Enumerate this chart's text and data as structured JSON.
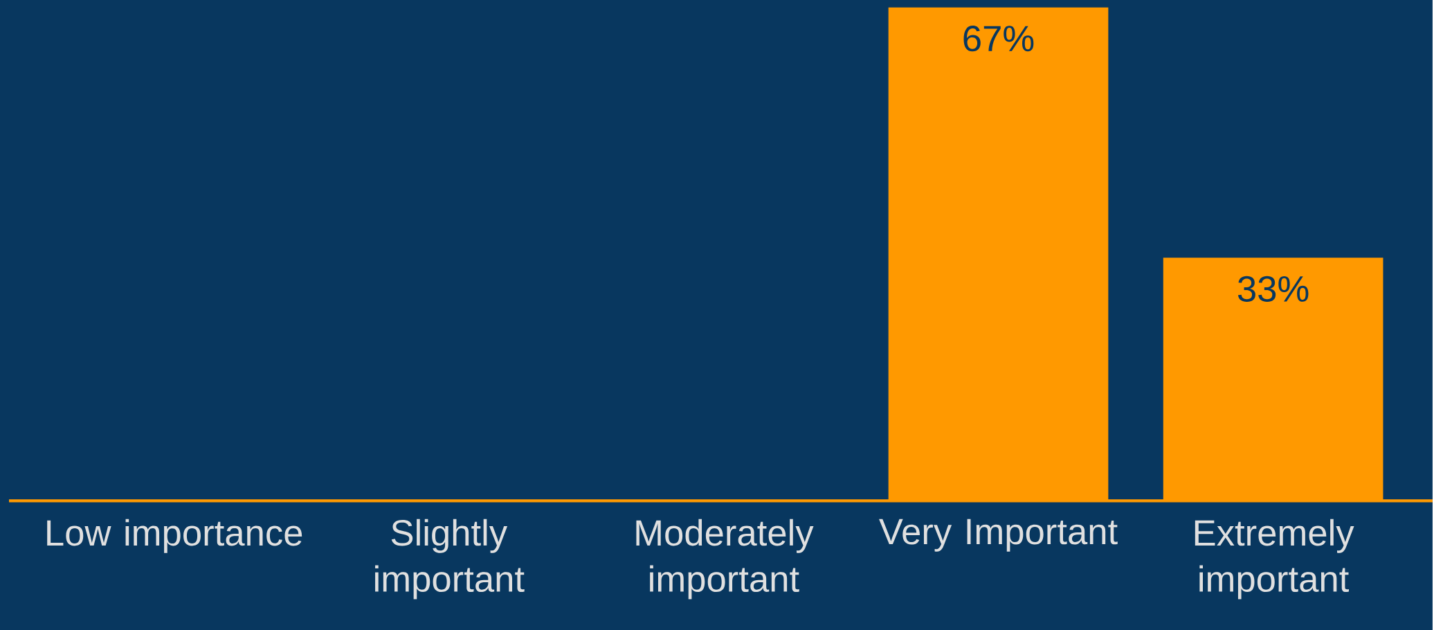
{
  "chart_data": {
    "type": "bar",
    "categories": [
      "Low importance",
      "Slightly important",
      "Moderately important",
      "Very Important",
      "Extremely important"
    ],
    "values": [
      0,
      0,
      0,
      67,
      33
    ],
    "value_labels": [
      null,
      null,
      null,
      "67%",
      "33%"
    ],
    "color": "#ff9900",
    "ylim": [
      0,
      68
    ]
  }
}
